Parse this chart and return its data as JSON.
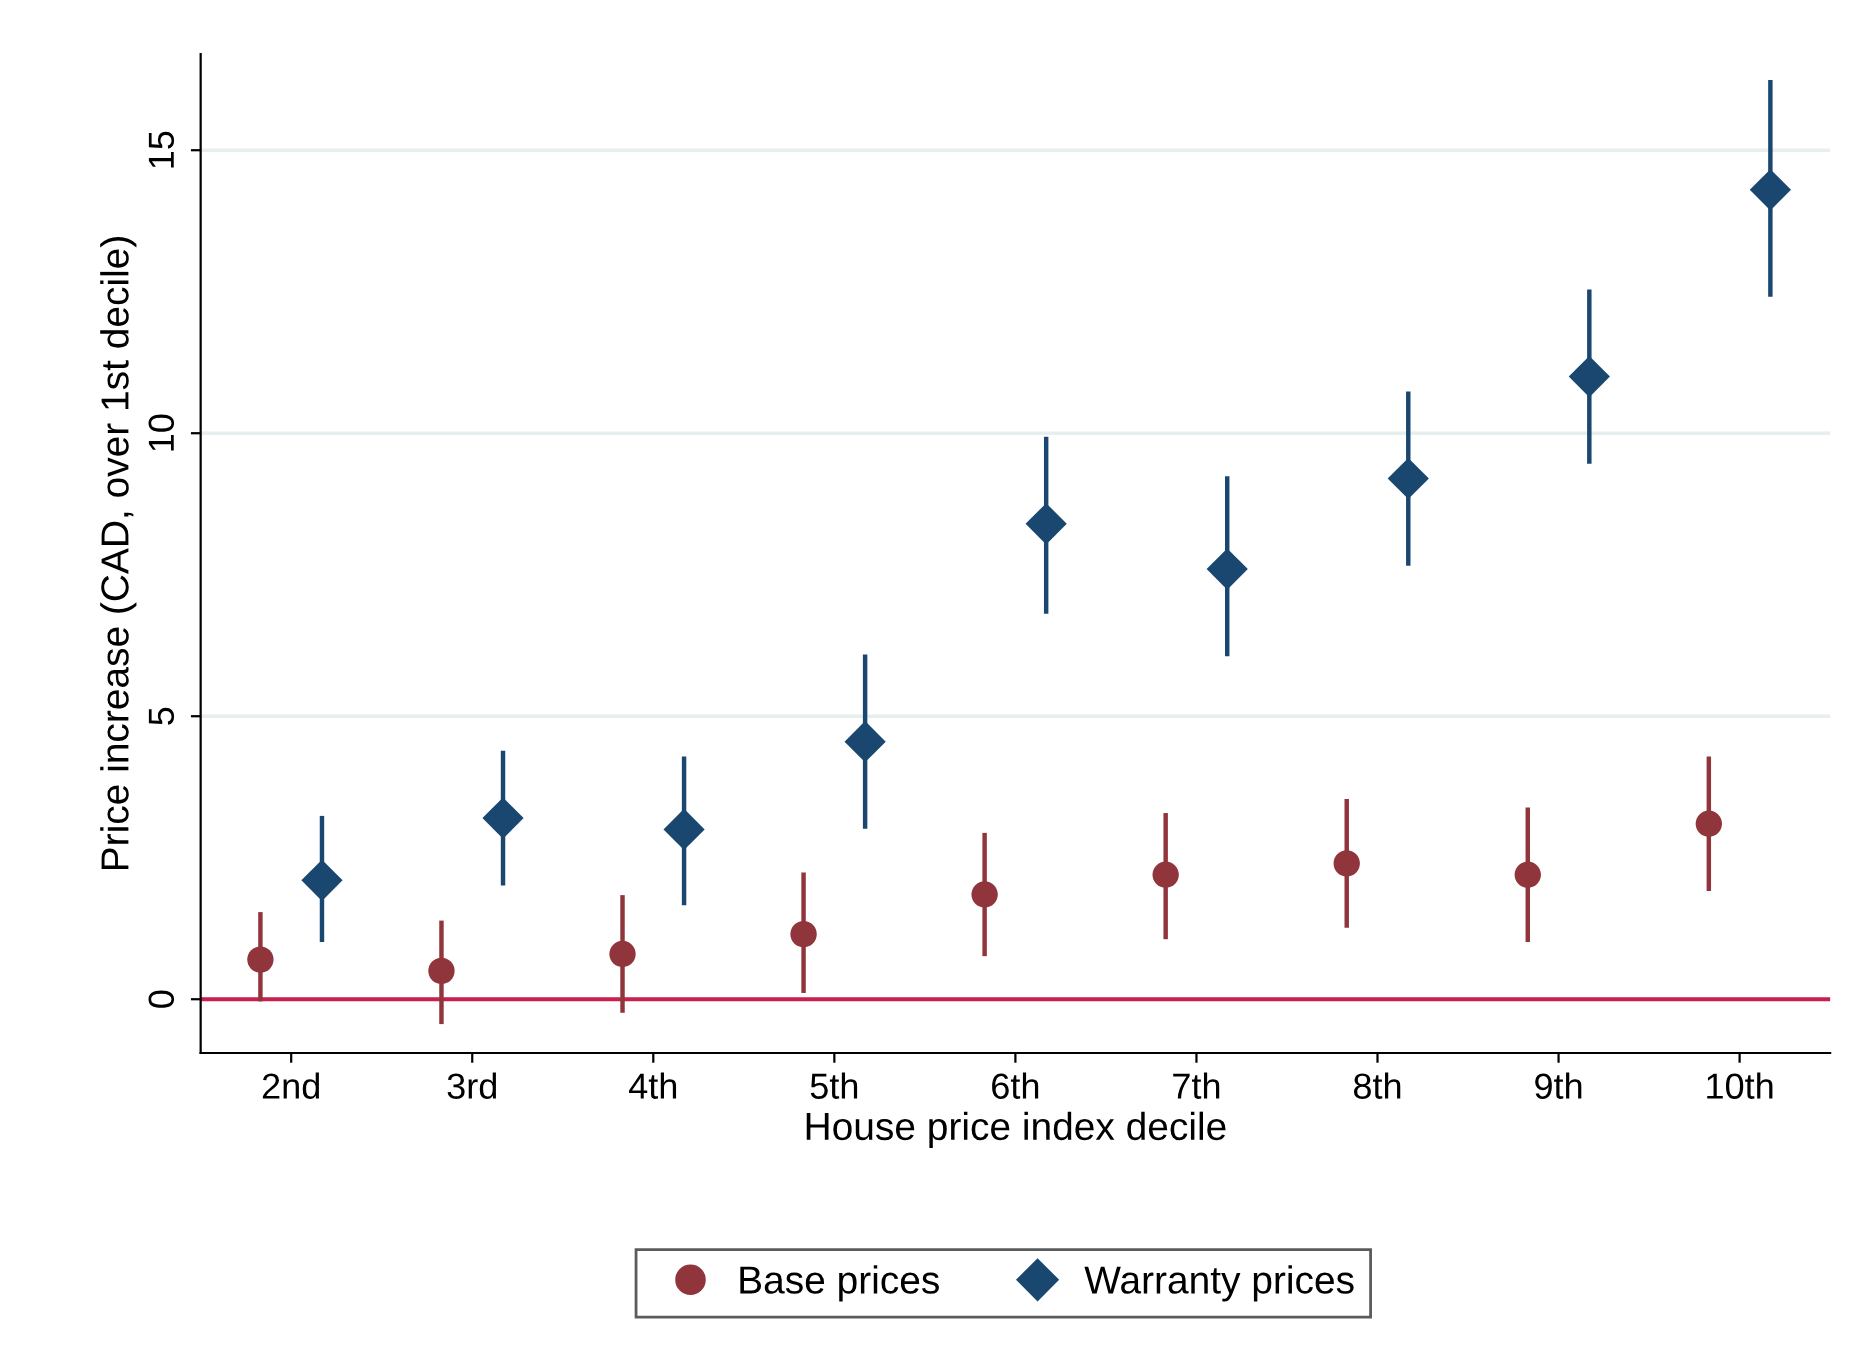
{
  "chart_data": {
    "type": "scatter",
    "xlabel": "House price index decile",
    "ylabel": "Price increase (CAD, over 1st decile)",
    "categories": [
      "2nd",
      "3rd",
      "4th",
      "5th",
      "6th",
      "7th",
      "8th",
      "9th",
      "10th"
    ],
    "series": [
      {
        "name": "Base prices",
        "color": "#90353b",
        "marker": "circle",
        "values": [
          0.7,
          0.5,
          0.8,
          1.15,
          1.85,
          2.2,
          2.4,
          2.2,
          3.1
        ],
        "errors": [
          [
            0,
            1.5
          ],
          [
            -0.4,
            1.35
          ],
          [
            -0.2,
            1.8
          ],
          [
            0.15,
            2.2
          ],
          [
            0.8,
            2.9
          ],
          [
            1.1,
            3.25
          ],
          [
            1.3,
            3.5
          ],
          [
            1.05,
            3.35
          ],
          [
            1.95,
            4.25
          ]
        ]
      },
      {
        "name": "Warranty prices",
        "color": "#1a476f",
        "marker": "diamond",
        "values": [
          2.1,
          3.2,
          3.0,
          4.55,
          8.4,
          7.6,
          9.2,
          11.0,
          14.3
        ],
        "errors": [
          [
            1.05,
            3.2
          ],
          [
            2.05,
            4.35
          ],
          [
            1.7,
            4.25
          ],
          [
            3.05,
            6.05
          ],
          [
            6.85,
            9.9
          ],
          [
            6.1,
            9.2
          ],
          [
            7.7,
            10.7
          ],
          [
            9.5,
            12.5
          ],
          [
            12.45,
            16.2
          ]
        ]
      }
    ],
    "ylim": [
      -0.95,
      16.7
    ],
    "yticks": [
      0,
      5,
      10,
      15
    ],
    "grid": "y",
    "legend": "bottom",
    "ref_lines": [
      {
        "axis": "y",
        "value": 0,
        "color": "#c8214f"
      }
    ]
  }
}
